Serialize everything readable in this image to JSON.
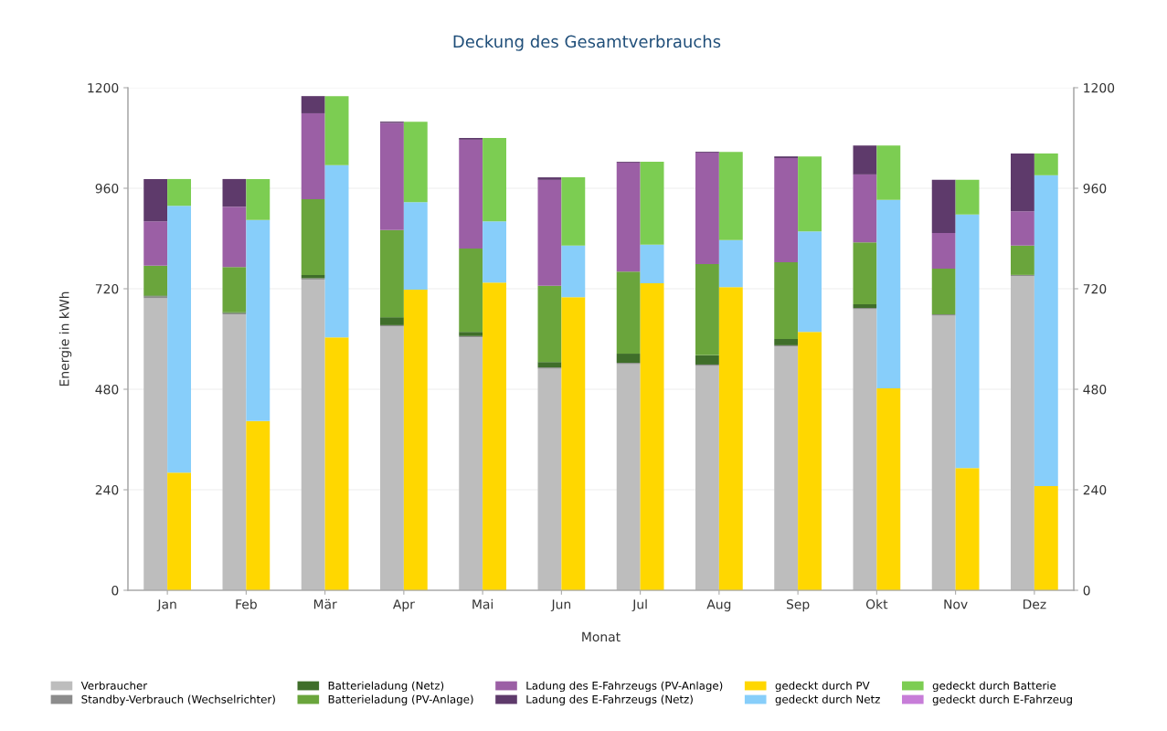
{
  "chart_data": {
    "type": "bar",
    "stacked": true,
    "title": "Deckung des Gesamtverbrauchs",
    "xlabel": "Monat",
    "ylabel": "Energie in kWh",
    "categories": [
      "Jan",
      "Feb",
      "Mär",
      "Apr",
      "Mai",
      "Jun",
      "Jul",
      "Aug",
      "Sep",
      "Okt",
      "Nov",
      "Dez"
    ],
    "series": [
      {
        "name": "Verbraucher",
        "color": "#bdbdbd",
        "values": [
          698,
          659,
          742,
          630,
          604,
          529,
          540,
          536,
          582,
          671,
          656,
          750
        ]
      },
      {
        "name": "Standby-Verbrauch (Wechselrichter)",
        "color": "#8c8c8c",
        "values": [
          4,
          3,
          3,
          3,
          3,
          3,
          3,
          3,
          3,
          3,
          3,
          3
        ]
      },
      {
        "name": "Batterieladung (Netz)",
        "color": "#3f6e2a",
        "values": [
          2,
          2,
          8,
          19,
          10,
          13,
          22,
          22,
          15,
          9,
          0,
          0
        ]
      },
      {
        "name": "Batterieladung (PV-Anlage)",
        "color": "#6aa53c",
        "values": [
          71,
          108,
          181,
          208,
          199,
          182,
          196,
          218,
          183,
          148,
          109,
          70
        ]
      },
      {
        "name": "Ladung des E-Fahrzeugs (PV-Anlage)",
        "color": "#9b5fa5",
        "values": [
          106,
          144,
          205,
          256,
          260,
          253,
          260,
          266,
          249,
          162,
          85,
          82
        ]
      },
      {
        "name": "Ladung des E-Fahrzeugs (Netz)",
        "color": "#5e3a6b",
        "values": [
          101,
          66,
          41,
          3,
          4,
          6,
          2,
          2,
          4,
          69,
          127,
          138
        ]
      },
      {
        "name": "gedeckt durch PV",
        "color": "#ffd700",
        "axis": "y2",
        "values": [
          281,
          404,
          604,
          718,
          735,
          700,
          733,
          724,
          617,
          482,
          292,
          249
        ]
      },
      {
        "name": "gedeckt durch Netz",
        "color": "#87cefa",
        "axis": "y2",
        "values": [
          637,
          480,
          411,
          209,
          146,
          123,
          92,
          112,
          240,
          450,
          605,
          742
        ]
      },
      {
        "name": "gedeckt durch Batterie",
        "color": "#7ccd52",
        "axis": "y2",
        "values": [
          64,
          98,
          165,
          192,
          199,
          163,
          198,
          211,
          179,
          130,
          83,
          52
        ]
      },
      {
        "name": "gedeckt durch E-Fahrzeug",
        "color": "#c77dd8",
        "axis": "y2",
        "values": [
          0,
          0,
          0,
          0,
          0,
          0,
          0,
          0,
          0,
          0,
          0,
          0
        ]
      }
    ],
    "ylim": [
      0,
      1200
    ],
    "yticks": [
      0,
      240,
      480,
      720,
      960,
      1200
    ],
    "y2lim": [
      0,
      1200
    ],
    "y2ticks": [
      0,
      240,
      480,
      720,
      960,
      1200
    ],
    "grid": "y",
    "legend": "bottom"
  }
}
